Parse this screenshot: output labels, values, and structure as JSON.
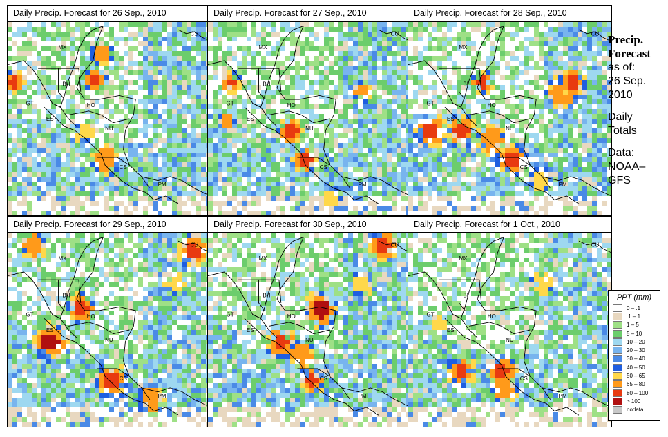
{
  "panels": [
    {
      "title": "Daily Precip. Forecast for  26 Sep., 2010",
      "seed": 11,
      "hot": [
        [
          0.02,
          0.3,
          0.5,
          "red"
        ],
        [
          0.42,
          0.28,
          0.5,
          "red"
        ],
        [
          0.45,
          0.15,
          0.5,
          "orange"
        ],
        [
          0.47,
          0.7,
          0.7,
          "orange"
        ],
        [
          0.36,
          0.56,
          0.4,
          "yellow"
        ]
      ]
    },
    {
      "title": "Daily Precip. Forecast for  27 Sep., 2010",
      "seed": 23,
      "hot": [
        [
          0.4,
          0.55,
          0.6,
          "red"
        ],
        [
          0.47,
          0.7,
          0.6,
          "red"
        ],
        [
          0.75,
          0.35,
          0.4,
          "orange"
        ],
        [
          0.1,
          0.3,
          0.4,
          "red"
        ],
        [
          0.08,
          0.5,
          0.3,
          "orange"
        ],
        [
          0.6,
          0.9,
          0.4,
          "yellow"
        ]
      ]
    },
    {
      "title": "Daily Precip. Forecast for  28 Sep., 2010",
      "seed": 37,
      "hot": [
        [
          0.1,
          0.55,
          0.8,
          "red"
        ],
        [
          0.25,
          0.55,
          0.8,
          "red"
        ],
        [
          0.4,
          0.6,
          0.7,
          "orange"
        ],
        [
          0.5,
          0.7,
          0.7,
          "red"
        ],
        [
          0.75,
          0.35,
          0.8,
          "orange"
        ],
        [
          0.8,
          0.3,
          0.6,
          "red"
        ],
        [
          0.35,
          0.3,
          0.5,
          "red"
        ],
        [
          0.65,
          0.8,
          0.5,
          "yellow"
        ]
      ]
    },
    {
      "title": "Daily Precip. Forecast for  29 Sep., 2010",
      "seed": 41,
      "hot": [
        [
          0.9,
          0.08,
          0.8,
          "red"
        ],
        [
          0.35,
          0.38,
          0.7,
          "red"
        ],
        [
          0.2,
          0.55,
          0.9,
          "darkred"
        ],
        [
          0.5,
          0.75,
          0.8,
          "red"
        ],
        [
          0.7,
          0.85,
          0.7,
          "orange"
        ],
        [
          0.12,
          0.05,
          0.6,
          "orange"
        ],
        [
          0.8,
          0.25,
          0.5,
          "yellow"
        ]
      ]
    },
    {
      "title": "Daily Precip. Forecast for  30 Sep., 2010",
      "seed": 53,
      "hot": [
        [
          0.55,
          0.38,
          0.9,
          "darkred"
        ],
        [
          0.85,
          0.05,
          0.7,
          "red"
        ],
        [
          0.35,
          0.55,
          0.8,
          "red"
        ],
        [
          0.45,
          0.62,
          0.6,
          "orange"
        ],
        [
          0.5,
          0.75,
          0.6,
          "red"
        ],
        [
          0.75,
          0.25,
          0.5,
          "yellow"
        ]
      ]
    },
    {
      "title": "Daily Precip. Forecast for  1 Oct., 2010",
      "seed": 67,
      "hot": [
        [
          0.25,
          0.7,
          0.7,
          "red"
        ],
        [
          0.45,
          0.7,
          0.7,
          "red"
        ],
        [
          0.47,
          0.8,
          0.6,
          "orange"
        ],
        [
          0.65,
          0.25,
          0.5,
          "yellow"
        ],
        [
          0.15,
          0.45,
          0.3,
          "yellow"
        ]
      ]
    }
  ],
  "map_labels": [
    "MX",
    "BH",
    "GT",
    "HO",
    "ES",
    "NU",
    "CS",
    "PM",
    "CU"
  ],
  "sidebar": {
    "line1": "Precip.",
    "line2": "Forecast",
    "line3": "as of:",
    "line4": "26 Sep.",
    "line5": "2010",
    "line6": "Daily",
    "line7": "Totals",
    "line8": "Data:",
    "line9": "NOAA–",
    "line10": "GFS"
  },
  "legend": {
    "title": "PPT (mm)",
    "items": [
      {
        "label": "0 – .1",
        "color": "#ffffff"
      },
      {
        "label": ".1 – 1",
        "color": "#e8d8c0"
      },
      {
        "label": "1 – 5",
        "color": "#9ee086"
      },
      {
        "label": "5 – 10",
        "color": "#6ccd6c"
      },
      {
        "label": "10 – 20",
        "color": "#9ed8f0"
      },
      {
        "label": "20 – 30",
        "color": "#78b4ee"
      },
      {
        "label": "30 – 40",
        "color": "#4a8ae6"
      },
      {
        "label": "40 – 50",
        "color": "#1f5ee0"
      },
      {
        "label": "50 – 65",
        "color": "#ffd84a"
      },
      {
        "label": "65 – 80",
        "color": "#ff9a1a"
      },
      {
        "label": "80 – 100",
        "color": "#e83a10"
      },
      {
        "label": "> 100",
        "color": "#b01010"
      },
      {
        "label": "nodata",
        "color": "#c8c8c8"
      }
    ]
  }
}
